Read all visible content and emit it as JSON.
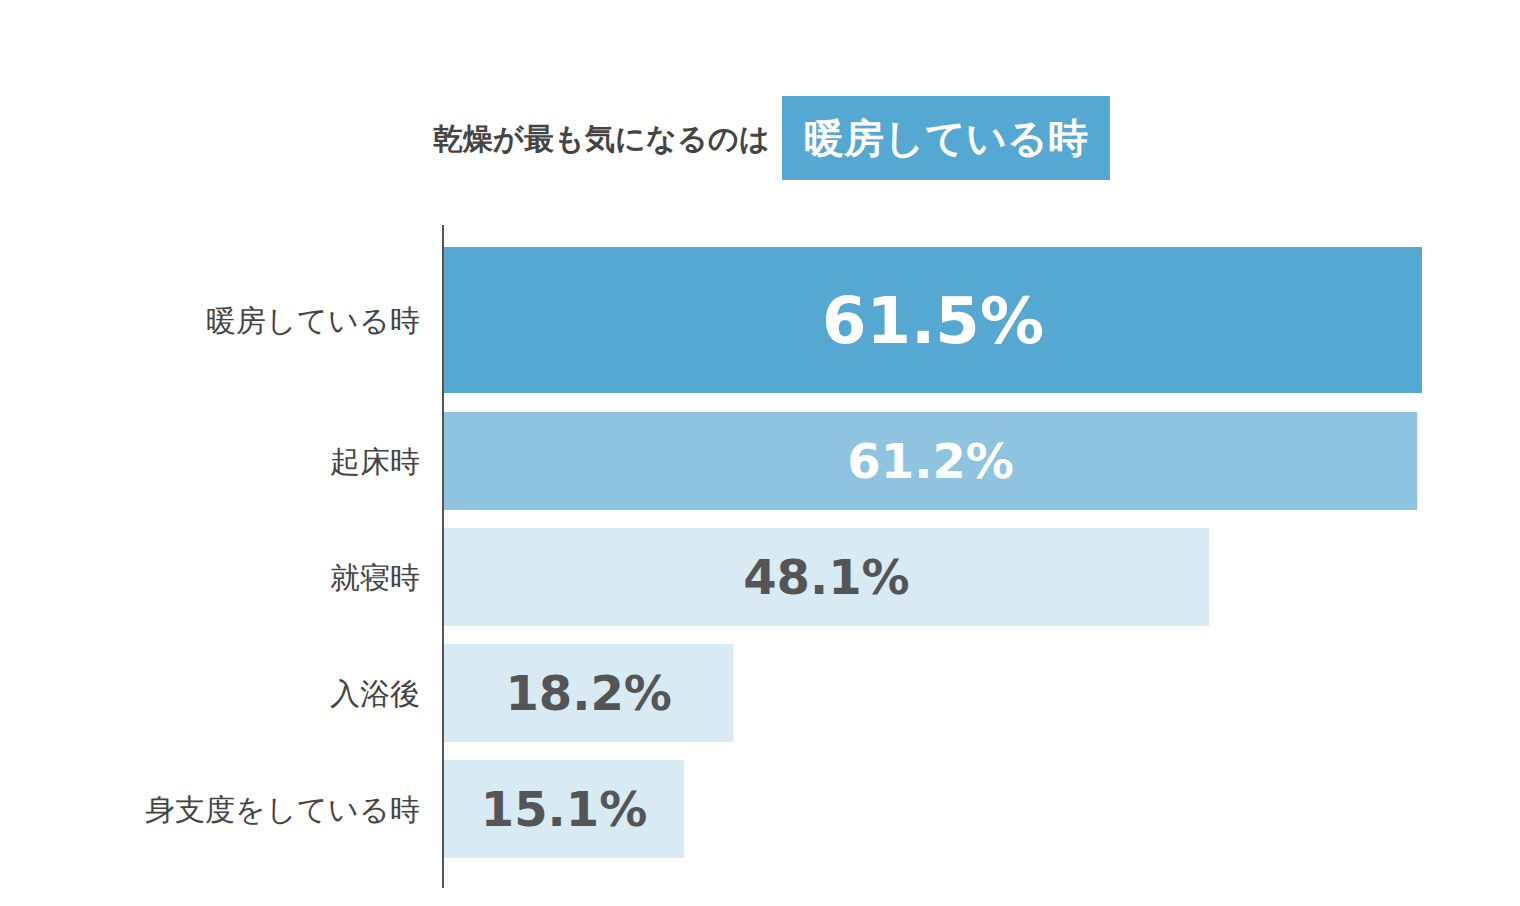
{
  "chart_data": {
    "type": "bar",
    "orientation": "horizontal",
    "title": "乾燥が最も気になるのは",
    "subtitle": "暖房している時",
    "categories": [
      "暖房している時",
      "起床時",
      "就寝時",
      "入浴後",
      "身支度をしている時"
    ],
    "values": [
      61.5,
      61.2,
      48.1,
      18.2,
      15.1
    ],
    "value_labels": [
      "61.5%",
      "61.2%",
      "48.1%",
      "18.2%",
      "15.1%"
    ],
    "colors": [
      "#55a8d2",
      "#8fc4e0",
      "#d8eaf4",
      "#d8eaf4",
      "#d8eaf4"
    ],
    "xlim": [
      0,
      61.5
    ],
    "data_labels": true,
    "tick_labels": "y",
    "grid": false
  }
}
